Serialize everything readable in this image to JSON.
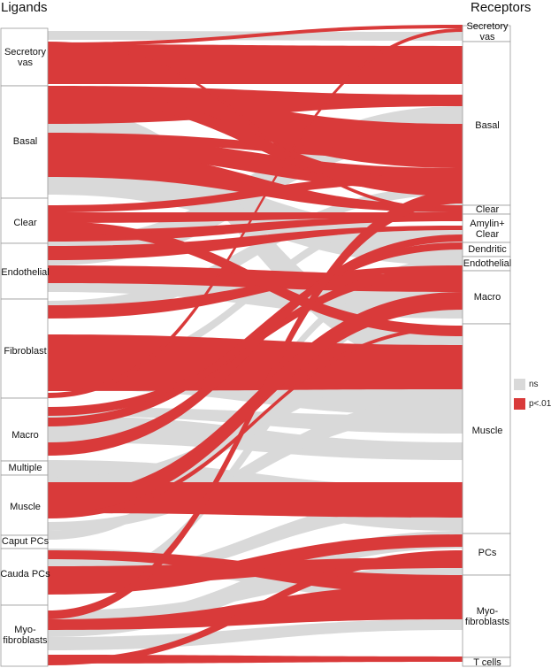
{
  "titles": {
    "left": "Ligands",
    "right": "Receptors"
  },
  "legend": [
    {
      "label": "ns",
      "color": "#d9d9d9"
    },
    {
      "label": "p<.01",
      "color": "#d93a3a"
    }
  ],
  "ligands": [
    {
      "id": "sv",
      "lines": [
        "Secretory",
        "vas"
      ]
    },
    {
      "id": "bas",
      "lines": [
        "Basal"
      ]
    },
    {
      "id": "clr",
      "lines": [
        "Clear"
      ]
    },
    {
      "id": "endo",
      "lines": [
        "Endothelial"
      ]
    },
    {
      "id": "fib",
      "lines": [
        "Fibroblast"
      ]
    },
    {
      "id": "mac",
      "lines": [
        "Macro"
      ]
    },
    {
      "id": "mul",
      "lines": [
        "Multiple"
      ]
    },
    {
      "id": "mus",
      "lines": [
        "Muscle"
      ]
    },
    {
      "id": "cap",
      "lines": [
        "Caput PCs"
      ]
    },
    {
      "id": "cau",
      "lines": [
        "Cauda PCs"
      ]
    },
    {
      "id": "myo",
      "lines": [
        "Myo-",
        "fibroblasts"
      ]
    }
  ],
  "receptors": [
    {
      "id": "rsv",
      "lines": [
        "Secretory",
        "vas"
      ]
    },
    {
      "id": "rbas",
      "lines": [
        "Basal"
      ]
    },
    {
      "id": "rclr",
      "lines": [
        "Clear"
      ]
    },
    {
      "id": "ramy",
      "lines": [
        "Amylin+",
        "Clear"
      ]
    },
    {
      "id": "rden",
      "lines": [
        "Dendritic"
      ]
    },
    {
      "id": "rendo",
      "lines": [
        "Endothelial"
      ]
    },
    {
      "id": "rmac",
      "lines": [
        "Macro"
      ]
    },
    {
      "id": "rmus",
      "lines": [
        "Muscle"
      ]
    },
    {
      "id": "rpc",
      "lines": [
        "PCs"
      ]
    },
    {
      "id": "rmyo",
      "lines": [
        "Myo-",
        "fibroblasts"
      ]
    },
    {
      "id": "rtc",
      "lines": [
        "T cells"
      ]
    }
  ]
}
